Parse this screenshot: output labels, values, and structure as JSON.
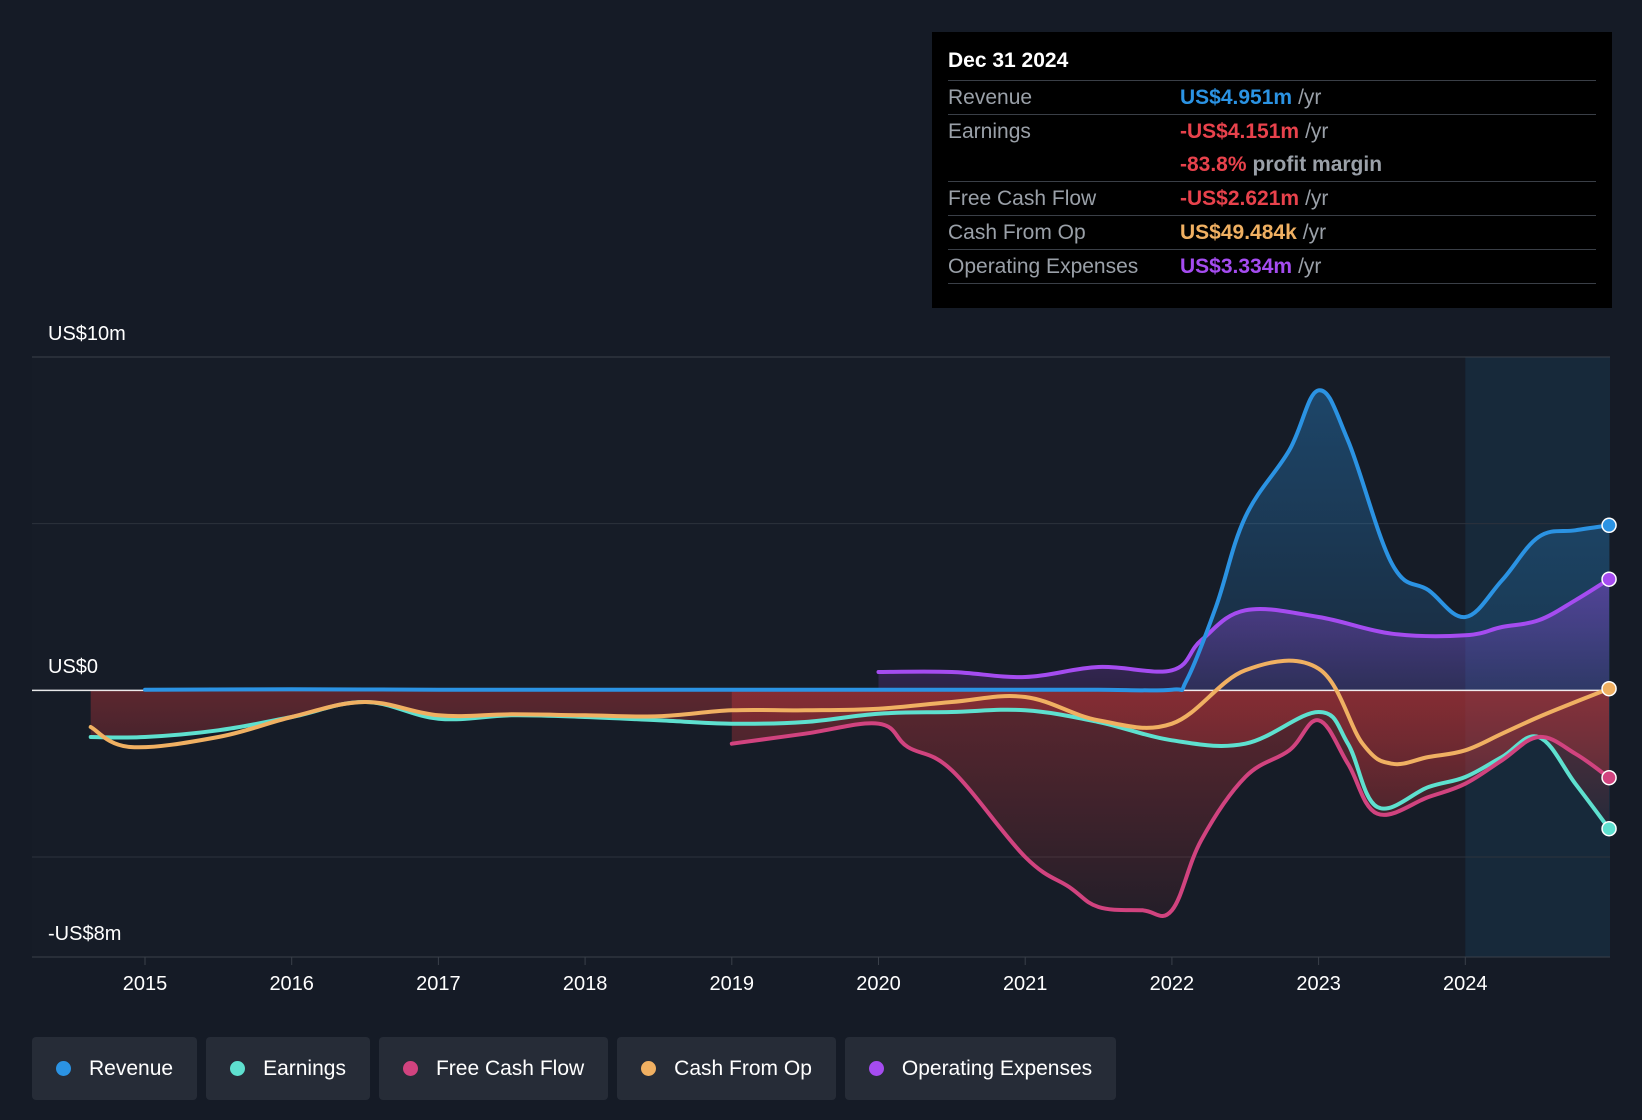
{
  "colors": {
    "revenue": "#2b93e3",
    "earnings": "#5ee0cf",
    "fcf": "#d1437f",
    "cfo": "#f0b062",
    "opex": "#a54cf0"
  },
  "tooltip": {
    "date": "Dec 31 2024",
    "rows": [
      {
        "label": "Revenue",
        "value": "US$4.951m",
        "suffix": "/yr"
      },
      {
        "label": "Earnings",
        "value": "-US$4.151m",
        "suffix": "/yr"
      },
      {
        "label": "",
        "value": "-83.8%",
        "suffix": "profit margin"
      },
      {
        "label": "Free Cash Flow",
        "value": "-US$2.621m",
        "suffix": "/yr"
      },
      {
        "label": "Cash From Op",
        "value": "US$49.484k",
        "suffix": "/yr"
      },
      {
        "label": "Operating Expenses",
        "value": "US$3.334m",
        "suffix": "/yr"
      }
    ]
  },
  "legend": [
    {
      "label": "Revenue"
    },
    {
      "label": "Earnings"
    },
    {
      "label": "Free Cash Flow"
    },
    {
      "label": "Cash From Op"
    },
    {
      "label": "Operating Expenses"
    }
  ],
  "chart_data": {
    "type": "line",
    "title": "",
    "y_labels": {
      "top": "US$10m",
      "zero": "US$0",
      "bottom": "-US$8m"
    },
    "ylim": [
      -8,
      10
    ],
    "xlim": [
      2014.0,
      2024.98
    ],
    "x_ticks": [
      "2015",
      "2016",
      "2017",
      "2018",
      "2019",
      "2020",
      "2021",
      "2022",
      "2023",
      "2024"
    ],
    "series": [
      {
        "name": "Revenue",
        "key": "revenue",
        "x": [
          2015.0,
          2016.0,
          2017.0,
          2018.0,
          2019.0,
          2020.0,
          2021.0,
          2021.5,
          2022.0,
          2022.1,
          2022.3,
          2022.5,
          2022.8,
          2023.0,
          2023.2,
          2023.5,
          2023.75,
          2024.0,
          2024.25,
          2024.5,
          2024.75,
          2024.98
        ],
        "y": [
          0.02,
          0.03,
          0.02,
          0.02,
          0.02,
          0.02,
          0.02,
          0.02,
          0.02,
          0.3,
          2.5,
          5.2,
          7.2,
          9.0,
          7.5,
          3.8,
          3.0,
          2.2,
          3.3,
          4.6,
          4.8,
          4.951
        ]
      },
      {
        "name": "Earnings",
        "key": "earnings",
        "x": [
          2014.63,
          2015.0,
          2015.5,
          2016.0,
          2016.5,
          2017.0,
          2017.5,
          2018.0,
          2018.5,
          2019.0,
          2019.5,
          2020.0,
          2020.5,
          2021.0,
          2021.5,
          2022.0,
          2022.5,
          2023.0,
          2023.2,
          2023.4,
          2023.75,
          2024.0,
          2024.25,
          2024.5,
          2024.75,
          2024.98
        ],
        "y": [
          -1.4,
          -1.4,
          -1.2,
          -0.8,
          -0.35,
          -0.85,
          -0.75,
          -0.8,
          -0.9,
          -1.0,
          -0.95,
          -0.7,
          -0.65,
          -0.6,
          -0.95,
          -1.5,
          -1.6,
          -0.65,
          -1.6,
          -3.5,
          -2.9,
          -2.6,
          -2.0,
          -1.4,
          -2.8,
          -4.151
        ]
      },
      {
        "name": "Free Cash Flow",
        "key": "fcf",
        "x": [
          2019.0,
          2019.5,
          2020.0,
          2020.2,
          2020.5,
          2021.0,
          2021.3,
          2021.5,
          2021.8,
          2022.0,
          2022.2,
          2022.5,
          2022.8,
          2023.0,
          2023.2,
          2023.4,
          2023.75,
          2024.0,
          2024.25,
          2024.5,
          2024.75,
          2024.98
        ],
        "y": [
          -1.6,
          -1.3,
          -1.0,
          -1.7,
          -2.4,
          -5.0,
          -5.9,
          -6.5,
          -6.6,
          -6.6,
          -4.5,
          -2.6,
          -1.8,
          -0.9,
          -2.2,
          -3.7,
          -3.2,
          -2.8,
          -2.1,
          -1.4,
          -1.9,
          -2.621
        ]
      },
      {
        "name": "Cash From Op",
        "key": "cfo",
        "x": [
          2014.63,
          2014.9,
          2015.5,
          2016.0,
          2016.5,
          2017.0,
          2017.5,
          2018.0,
          2018.5,
          2019.0,
          2019.5,
          2020.0,
          2020.5,
          2021.0,
          2021.5,
          2022.0,
          2022.5,
          2023.0,
          2023.3,
          2023.5,
          2023.75,
          2024.0,
          2024.25,
          2024.5,
          2024.75,
          2024.98
        ],
        "y": [
          -1.1,
          -1.7,
          -1.4,
          -0.8,
          -0.35,
          -0.75,
          -0.72,
          -0.75,
          -0.78,
          -0.6,
          -0.6,
          -0.55,
          -0.35,
          -0.2,
          -0.9,
          -1.0,
          0.6,
          0.65,
          -1.6,
          -2.2,
          -2.0,
          -1.8,
          -1.3,
          -0.8,
          -0.35,
          0.049
        ]
      },
      {
        "name": "Operating Expenses",
        "key": "opex",
        "x": [
          2020.0,
          2020.5,
          2021.0,
          2021.5,
          2022.0,
          2022.2,
          2022.5,
          2023.0,
          2023.5,
          2024.0,
          2024.25,
          2024.5,
          2024.75,
          2024.98
        ],
        "y": [
          0.55,
          0.55,
          0.4,
          0.7,
          0.6,
          1.5,
          2.4,
          2.2,
          1.7,
          1.65,
          1.9,
          2.1,
          2.7,
          3.334
        ]
      }
    ]
  }
}
